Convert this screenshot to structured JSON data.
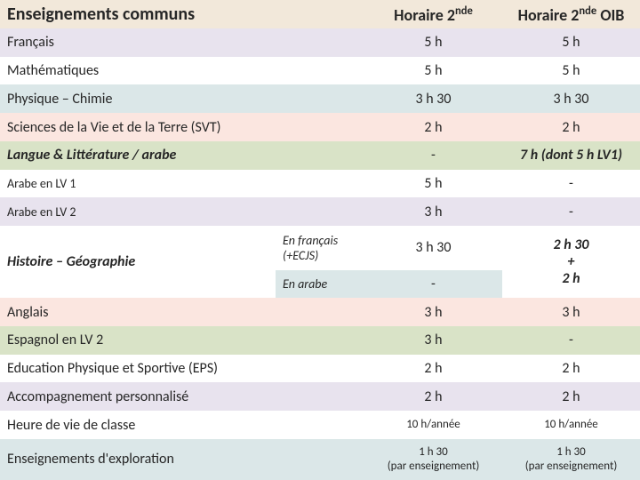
{
  "colors": {
    "header": "#f2e8da",
    "row0": "#e8e3ee",
    "row1": "#ffffff",
    "row2": "#dbe7e8",
    "row3": "#fbe6e0",
    "row4": "#d9e3c7",
    "row5": "#ffffff",
    "row6": "#e8e3ee",
    "row7": "#ffffff",
    "row8": "#dbe7e8",
    "row9": "#fbe6e0",
    "row10": "#d9e3c7",
    "row11": "#ffffff",
    "row12": "#e8e3ee",
    "row13": "#ffffff",
    "row14": "#dbe7e8",
    "text": "#262626"
  },
  "header": {
    "col1": "Enseignements communs",
    "col2_a": "Horaire 2",
    "col2_b": "nde",
    "col3_a": "Horaire 2",
    "col3_b": "nde",
    "col3_c": " OIB"
  },
  "rows": [
    {
      "label": "Français",
      "h1": "5 h",
      "h2": "5 h"
    },
    {
      "label": "Mathématiques",
      "h1": "5 h",
      "h2": "5 h"
    },
    {
      "label": "Physique – Chimie",
      "h1": "3 h 30",
      "h2": "3 h 30"
    },
    {
      "label": "Sciences de la Vie et de la Terre (SVT)",
      "h1": "2 h",
      "h2": "2 h"
    },
    {
      "label": "Langue & Littérature / arabe",
      "h1": "-",
      "h2": "7 h (dont 5 h LV1)"
    },
    {
      "label": "Arabe en LV 1",
      "h1": "5 h",
      "h2": "-"
    },
    {
      "label": "Arabe en LV 2",
      "h1": "3 h",
      "h2": "-"
    }
  ],
  "hg": {
    "label": "Histoire – Géographie",
    "sub1": "En français (+ECJS)",
    "sub2": "En arabe",
    "h1a": "3 h 30",
    "h1b": "-",
    "h2": "2 h 30\n+\n2 h"
  },
  "rows2": [
    {
      "label": "Anglais",
      "h1": "3 h",
      "h2": "3 h"
    },
    {
      "label": "Espagnol en LV 2",
      "h1": "3 h",
      "h2": "-"
    },
    {
      "label": "Education Physique et Sportive (EPS)",
      "h1": "2 h",
      "h2": "2 h"
    },
    {
      "label": "Accompagnement personnalisé",
      "h1": "2 h",
      "h2": "2 h"
    },
    {
      "label": "Heure de vie de classe",
      "h1": "10 h/année",
      "h2": "10 h/année"
    },
    {
      "label": "Enseignements d'exploration",
      "h1": "1 h 30\n(par enseignement)",
      "h2": "1 h 30\n(par enseignement)"
    }
  ]
}
